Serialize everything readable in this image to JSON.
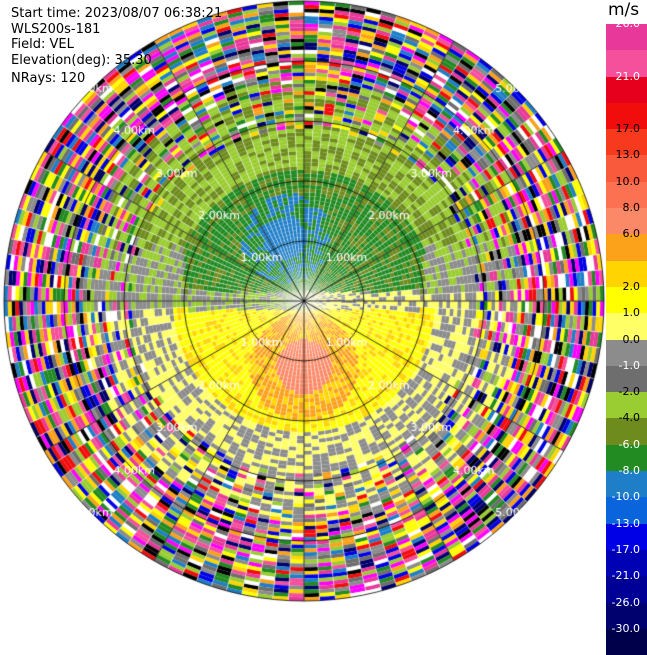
{
  "header": {
    "start_time": "Start time: 2023/08/07 06:38:21",
    "instrument": "WLS200s-181",
    "field": "Field: VEL",
    "elevation": "Elevation(deg): 35.30",
    "nrays": "NRays: 120"
  },
  "colorbar": {
    "unit": "m/s",
    "segments": [
      {
        "color": "#e8399a",
        "label": "26.0",
        "label_color": "#ffffff"
      },
      {
        "color": "#f4509c",
        "label": "",
        "label_color": "#ffffff"
      },
      {
        "color": "#e6001e",
        "label": "21.0",
        "label_color": "#ffffff"
      },
      {
        "color": "#f20d0d",
        "label": "",
        "label_color": "#ffffff"
      },
      {
        "color": "#f73a1e",
        "label": "17.0",
        "label_color": "#000000"
      },
      {
        "color": "#fa5a3c",
        "label": "13.0",
        "label_color": "#000000"
      },
      {
        "color": "#fb7152",
        "label": "10.0",
        "label_color": "#000000"
      },
      {
        "color": "#fb8866",
        "label": "8.0",
        "label_color": "#000000"
      },
      {
        "color": "#fba11a",
        "label": "6.0",
        "label_color": "#000000"
      },
      {
        "color": "#ffd400",
        "label": "",
        "label_color": "#000000"
      },
      {
        "color": "#ffff00",
        "label": "2.0",
        "label_color": "#000000"
      },
      {
        "color": "#ffff66",
        "label": "1.0",
        "label_color": "#000000"
      },
      {
        "color": "#8c8c8c",
        "label": "0.0",
        "label_color": "#000000"
      },
      {
        "color": "#6e6e6e",
        "label": "-1.0",
        "label_color": "#ffffff"
      },
      {
        "color": "#9acd32",
        "label": "-2.0",
        "label_color": "#000000"
      },
      {
        "color": "#6e8c1e",
        "label": "-4.0",
        "label_color": "#000000"
      },
      {
        "color": "#228b22",
        "label": "-6.0",
        "label_color": "#ffffff"
      },
      {
        "color": "#1e7ec8",
        "label": "-8.0",
        "label_color": "#ffffff"
      },
      {
        "color": "#0a64dc",
        "label": "-10.0",
        "label_color": "#ffffff"
      },
      {
        "color": "#0000e6",
        "label": "-13.0",
        "label_color": "#ffffff"
      },
      {
        "color": "#0000b4",
        "label": "-17.0",
        "label_color": "#ffffff"
      },
      {
        "color": "#000096",
        "label": "-21.0",
        "label_color": "#ffffff"
      },
      {
        "color": "#00006e",
        "label": "-26.0",
        "label_color": "#ffffff"
      },
      {
        "color": "#00004a",
        "label": "-30.0",
        "label_color": "#ffffff"
      }
    ]
  },
  "range_rings": [
    {
      "label": "1.00km"
    },
    {
      "label": "2.00km"
    },
    {
      "label": "3.00km"
    },
    {
      "label": "4.00km"
    },
    {
      "label": "5.00km"
    }
  ]
}
